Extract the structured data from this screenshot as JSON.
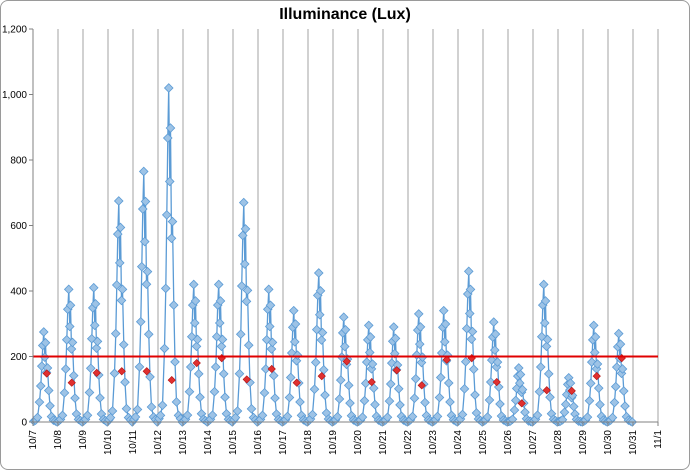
{
  "chart_data": {
    "type": "line",
    "title": "Illuminance (Lux)",
    "xlabel": "",
    "ylabel": "",
    "ylim": [
      0,
      1200
    ],
    "y_ticks": [
      "0",
      "200",
      "400",
      "600",
      "800",
      "1,000",
      "1,200"
    ],
    "y_tick_values": [
      0,
      200,
      400,
      600,
      800,
      1000,
      1200
    ],
    "x_tick_labels": [
      "10/7",
      "10/8",
      "10/9",
      "10/10",
      "10/11",
      "10/12",
      "10/13",
      "10/14",
      "10/15",
      "10/16",
      "10/17",
      "10/18",
      "10/19",
      "10/20",
      "10/21",
      "10/22",
      "10/23",
      "10/24",
      "10/25",
      "10/26",
      "10/27",
      "10/28",
      "10/29",
      "10/30",
      "10/31",
      "11/1"
    ],
    "xlim": [
      0,
      25
    ],
    "grid": "vertical gridlines at each day",
    "series": [
      {
        "color": "#5B9BD5",
        "marker_color": "#9DC3E6",
        "daily_peaks": [
          275,
          405,
          410,
          675,
          765,
          1020,
          420,
          420,
          670,
          405,
          340,
          455,
          320,
          295,
          290,
          330,
          340,
          460,
          305,
          165,
          420,
          135,
          295,
          270
        ]
      },
      {
        "color": "#E03030",
        "daily_means": [
          148,
          120,
          150,
          155,
          155,
          128,
          180,
          195,
          130,
          162,
          120,
          140,
          185,
          122,
          158,
          112,
          190,
          195,
          122,
          57,
          97,
          95,
          140,
          195
        ]
      }
    ],
    "reference_line": {
      "value": 200,
      "color": "#E00000"
    }
  }
}
